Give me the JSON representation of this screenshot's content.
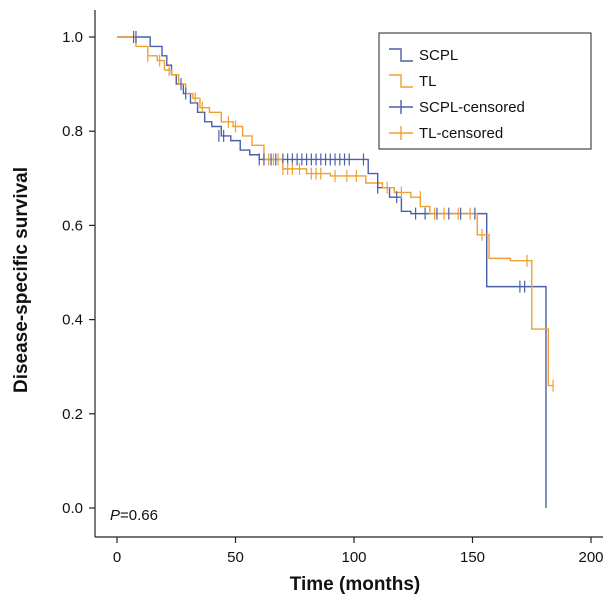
{
  "chart_data": {
    "type": "line",
    "title": "",
    "xlabel": "Time (months)",
    "ylabel": "Disease-specific survival",
    "xlim": [
      -8,
      202
    ],
    "ylim": [
      -0.04,
      1.06
    ],
    "xticks": [
      0,
      50,
      100,
      150,
      200
    ],
    "xtick_labels": [
      "0",
      "50",
      "100",
      "150",
      "200"
    ],
    "yticks": [
      0.0,
      0.2,
      0.4,
      0.6,
      0.8,
      1.0
    ],
    "ytick_labels": [
      "0.0",
      "0.2",
      "0.4",
      "0.6",
      "0.8",
      "1.0"
    ],
    "annotation": {
      "italic": "P",
      "text": "=0.66"
    },
    "grid": false,
    "legend_position": "top-right",
    "series": [
      {
        "name": "SCPL",
        "color": "#4a5fa8",
        "steps": [
          [
            0,
            1.0
          ],
          [
            14,
            0.98
          ],
          [
            19,
            0.96
          ],
          [
            21,
            0.94
          ],
          [
            23,
            0.92
          ],
          [
            25,
            0.9
          ],
          [
            28,
            0.88
          ],
          [
            31,
            0.86
          ],
          [
            34,
            0.84
          ],
          [
            37,
            0.82
          ],
          [
            40,
            0.81
          ],
          [
            44,
            0.79
          ],
          [
            48,
            0.78
          ],
          [
            52,
            0.76
          ],
          [
            56,
            0.75
          ],
          [
            60,
            0.74
          ],
          [
            106,
            0.71
          ],
          [
            110,
            0.68
          ],
          [
            115,
            0.66
          ],
          [
            120,
            0.63
          ],
          [
            124,
            0.625
          ],
          [
            156,
            0.47
          ],
          [
            181,
            0.0
          ]
        ],
        "end_x": 181
      },
      {
        "name": "TL",
        "color": "#f0a030",
        "steps": [
          [
            0,
            1.0
          ],
          [
            8,
            0.98
          ],
          [
            13,
            0.96
          ],
          [
            17,
            0.95
          ],
          [
            20,
            0.93
          ],
          [
            23,
            0.92
          ],
          [
            26,
            0.9
          ],
          [
            29,
            0.88
          ],
          [
            32,
            0.87
          ],
          [
            35,
            0.85
          ],
          [
            39,
            0.84
          ],
          [
            44,
            0.82
          ],
          [
            49,
            0.81
          ],
          [
            53,
            0.79
          ],
          [
            57,
            0.77
          ],
          [
            62,
            0.74
          ],
          [
            70,
            0.72
          ],
          [
            80,
            0.71
          ],
          [
            90,
            0.705
          ],
          [
            105,
            0.69
          ],
          [
            112,
            0.68
          ],
          [
            117,
            0.67
          ],
          [
            124,
            0.66
          ],
          [
            128,
            0.64
          ],
          [
            132,
            0.625
          ],
          [
            152,
            0.58
          ],
          [
            157,
            0.53
          ],
          [
            166,
            0.525
          ],
          [
            175,
            0.38
          ],
          [
            182,
            0.26
          ]
        ],
        "end_x": 184
      }
    ],
    "censored": [
      {
        "name": "SCPL-censored",
        "color": "#4a5fa8",
        "points": [
          [
            7,
            1.0
          ],
          [
            8,
            1.0
          ],
          [
            27,
            0.9
          ],
          [
            29,
            0.88
          ],
          [
            43,
            0.79
          ],
          [
            45,
            0.79
          ],
          [
            60,
            0.74
          ],
          [
            62,
            0.74
          ],
          [
            65,
            0.74
          ],
          [
            67,
            0.74
          ],
          [
            70,
            0.74
          ],
          [
            72,
            0.74
          ],
          [
            74,
            0.74
          ],
          [
            76,
            0.74
          ],
          [
            78,
            0.74
          ],
          [
            80,
            0.74
          ],
          [
            82,
            0.74
          ],
          [
            84,
            0.74
          ],
          [
            86,
            0.74
          ],
          [
            88,
            0.74
          ],
          [
            90,
            0.74
          ],
          [
            92,
            0.74
          ],
          [
            94,
            0.74
          ],
          [
            96,
            0.74
          ],
          [
            98,
            0.74
          ],
          [
            104,
            0.74
          ],
          [
            110,
            0.68
          ],
          [
            118,
            0.66
          ],
          [
            126,
            0.625
          ],
          [
            130,
            0.625
          ],
          [
            135,
            0.625
          ],
          [
            140,
            0.625
          ],
          [
            145,
            0.625
          ],
          [
            151,
            0.625
          ],
          [
            170,
            0.47
          ],
          [
            172,
            0.47
          ]
        ]
      },
      {
        "name": "TL-censored",
        "color": "#f0a030",
        "points": [
          [
            13,
            0.96
          ],
          [
            18,
            0.95
          ],
          [
            22,
            0.93
          ],
          [
            33,
            0.87
          ],
          [
            36,
            0.85
          ],
          [
            47,
            0.82
          ],
          [
            50,
            0.81
          ],
          [
            64,
            0.74
          ],
          [
            66,
            0.74
          ],
          [
            68,
            0.74
          ],
          [
            70,
            0.72
          ],
          [
            72,
            0.72
          ],
          [
            74,
            0.72
          ],
          [
            77,
            0.72
          ],
          [
            82,
            0.71
          ],
          [
            84,
            0.71
          ],
          [
            86,
            0.71
          ],
          [
            92,
            0.705
          ],
          [
            97,
            0.705
          ],
          [
            101,
            0.705
          ],
          [
            114,
            0.68
          ],
          [
            120,
            0.67
          ],
          [
            128,
            0.66
          ],
          [
            134,
            0.625
          ],
          [
            138,
            0.625
          ],
          [
            144,
            0.625
          ],
          [
            149,
            0.625
          ],
          [
            154,
            0.58
          ],
          [
            173,
            0.525
          ],
          [
            184,
            0.26
          ]
        ]
      }
    ]
  }
}
